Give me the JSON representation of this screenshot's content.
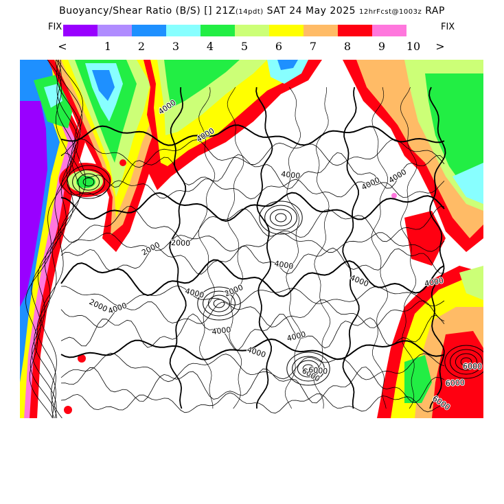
{
  "header": {
    "title_prefix": "Buoyancy/Shear Ratio (B/S) [] 21Z",
    "title_small_1": "(14pdt)",
    "title_mid": " SAT 24 May 2025 ",
    "title_small_2": "12hrFcst@1003z",
    "title_suffix": " RAP"
  },
  "legend": {
    "fix_left": "FIX",
    "fix_right": "FIX",
    "colors": [
      "#9900ff",
      "#b08cff",
      "#1e90ff",
      "#88ffff",
      "#22ee44",
      "#ccff77",
      "#ffff00",
      "#ffbb66",
      "#ff0011",
      "#ff77dd"
    ],
    "ticks": [
      "<",
      "1",
      "2",
      "3",
      "4",
      "5",
      "6",
      "7",
      "8",
      "9",
      "10",
      ">"
    ]
  },
  "map": {
    "contour_labels": [
      "4000",
      "2000",
      "4000",
      "4000",
      "4000",
      "4000",
      "2000",
      "4000",
      "4000",
      "4000",
      "4000",
      "4000",
      "4000",
      "2000",
      "4000",
      "6000",
      "6000",
      "6000",
      "6000",
      "4000",
      "6000",
      "2000"
    ]
  }
}
